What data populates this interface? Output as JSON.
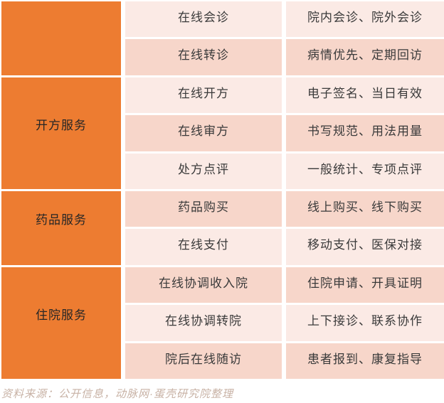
{
  "chart_data": {
    "type": "table",
    "title": "",
    "categories": [
      {
        "label": "",
        "span": 2
      },
      {
        "label": "开方服务",
        "span": 3
      },
      {
        "label": "药品服务",
        "span": 2
      },
      {
        "label": "住院服务",
        "span": 3
      }
    ],
    "rows": [
      {
        "service": "在线会诊",
        "details": "院内会诊、院外会诊"
      },
      {
        "service": "在线转诊",
        "details": "病情优先、定期回访"
      },
      {
        "service": "在线开方",
        "details": "电子签名、当日有效"
      },
      {
        "service": "在线审方",
        "details": "书写规范、用法用量"
      },
      {
        "service": "处方点评",
        "details": "一般统计、专项点评"
      },
      {
        "service": "药品购买",
        "details": "线上购买、线下购买"
      },
      {
        "service": "在线支付",
        "details": "移动支付、医保对接"
      },
      {
        "service": "在线协调收入院",
        "details": "住院申请、开具证明"
      },
      {
        "service": "在线协调转院",
        "details": "上下接诊、联系协作"
      },
      {
        "service": "院后在线随访",
        "details": "患者报到、康复指导"
      }
    ],
    "source_note": "资料来源：公开信息，动脉网·蛋壳研究院整理"
  },
  "colors": {
    "orange": "#ED7C31",
    "row_light": "#FBEAE5",
    "row_dark": "#F7D6CA",
    "cell_text": "#3A3A3A",
    "note_text": "#C8B2A5"
  }
}
